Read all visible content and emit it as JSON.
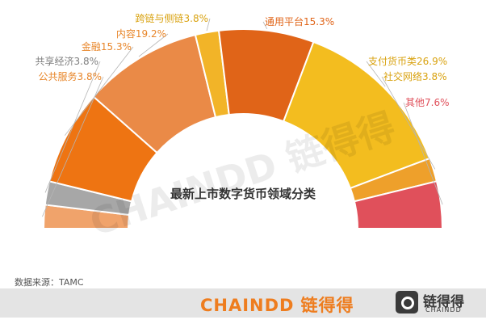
{
  "colors": {
    "accent": "#ee7d1f",
    "label_orange": "#e8862a",
    "label_gold": "#d9a20f",
    "label_gray": "#7f7f7f",
    "label_red": "#e0505b"
  },
  "chart_data": {
    "type": "pie",
    "subtype": "semicircle-donut",
    "center_label": "最新上市数字货币领域分类",
    "unit": "%",
    "slices": [
      {
        "label": "公共服务",
        "value": 3.8,
        "display": "公共服务3.8%",
        "color": "#f0a36b",
        "label_color": "#e8862a"
      },
      {
        "label": "共享经济",
        "value": 3.8,
        "display": "共享经济3.8%",
        "color": "#a7a7a7",
        "label_color": "#7f7f7f"
      },
      {
        "label": "金融",
        "value": 15.3,
        "display": "金融15.3%",
        "color": "#ee7412",
        "label_color": "#e8862a"
      },
      {
        "label": "内容",
        "value": 19.2,
        "display": "内容19.2%",
        "color": "#ea8a47",
        "label_color": "#e8862a"
      },
      {
        "label": "跨链与侧链",
        "value": 3.8,
        "display": "跨链与侧链3.8%",
        "color": "#f2b428",
        "label_color": "#d9a20f"
      },
      {
        "label": "通用平台",
        "value": 15.3,
        "display": "通用平台15.3%",
        "color": "#e06418",
        "label_color": "#e06418"
      },
      {
        "label": "支付货币类",
        "value": 26.9,
        "display": "支付货币类26.9%",
        "color": "#f3bd1f",
        "label_color": "#d9a20f"
      },
      {
        "label": "社交网络",
        "value": 3.8,
        "display": "社交网络3.8%",
        "color": "#eea02b",
        "label_color": "#d9a20f"
      },
      {
        "label": "其他",
        "value": 7.6,
        "display": "其他7.6%",
        "color": "#e0505b",
        "label_color": "#e0505b"
      }
    ],
    "legend": "none"
  },
  "source_text": "数据来源：TAMC",
  "watermark": "CHAINDD 链得得",
  "footer": {
    "brand_en": "CHAINDD",
    "brand_cn": "链得得",
    "logo_cn": "链得得",
    "logo_en": "CHAINDD"
  }
}
